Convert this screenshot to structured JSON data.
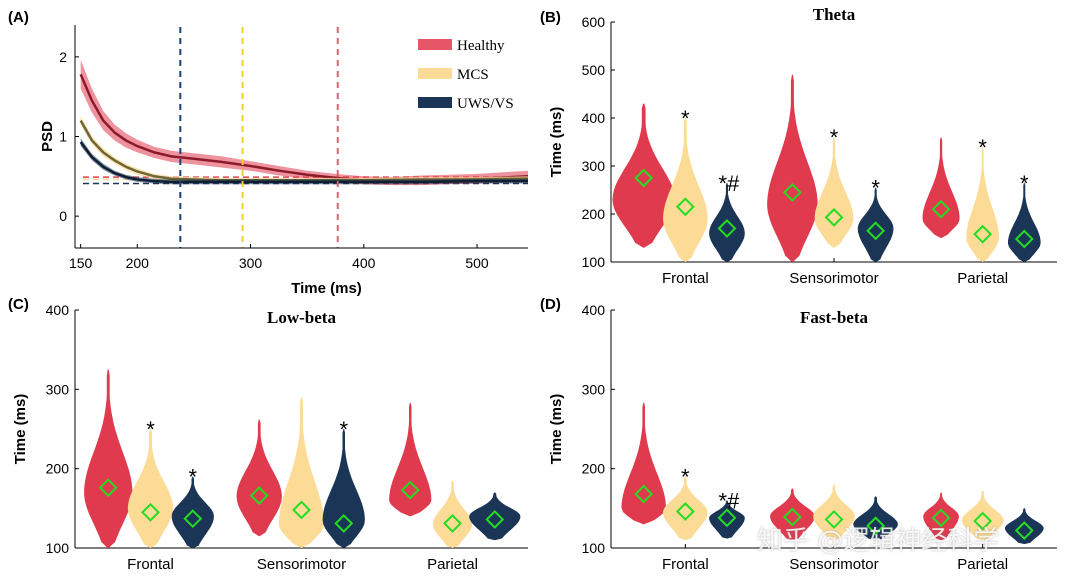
{
  "colors": {
    "healthy": "#E03A4E",
    "mcs": "#FBDB95",
    "uws": "#1B3556",
    "healthy_line": "#8B1A2A",
    "mcs_line": "#6E6638",
    "uws_line": "#0F1E33",
    "marker": "#22DD22",
    "vline_uws": "#1F3F7A",
    "vline_mcs": "#F2D226",
    "vline_healthy": "#E06070"
  },
  "watermark": "知乎 @逻辑神经科学",
  "chart_data": [
    {
      "id": "A",
      "panel_label": "(A)",
      "type": "line",
      "title": "",
      "xlabel": "Time (ms)",
      "ylabel": "PSD",
      "xlim": [
        145,
        545
      ],
      "ylim": [
        -0.4,
        2.4
      ],
      "xticks": [
        150,
        200,
        300,
        400,
        500
      ],
      "yticks": [
        0,
        1,
        2
      ],
      "legend": {
        "position": "top-right",
        "entries": [
          "Healthy",
          "MCS",
          "UWS/VS"
        ]
      },
      "series": [
        {
          "name": "Healthy",
          "key": "healthy",
          "x": [
            150,
            160,
            170,
            180,
            190,
            200,
            215,
            230,
            250,
            275,
            300,
            325,
            350,
            375,
            400,
            425,
            450,
            475,
            500,
            545
          ],
          "y": [
            1.78,
            1.45,
            1.2,
            1.05,
            0.95,
            0.88,
            0.8,
            0.75,
            0.72,
            0.68,
            0.63,
            0.57,
            0.52,
            0.48,
            0.45,
            0.44,
            0.45,
            0.46,
            0.47,
            0.5
          ],
          "band": [
            0.18,
            0.15,
            0.12,
            0.1,
            0.09,
            0.08,
            0.07,
            0.07,
            0.07,
            0.07,
            0.06,
            0.06,
            0.05,
            0.05,
            0.05,
            0.05,
            0.06,
            0.06,
            0.06,
            0.07
          ]
        },
        {
          "name": "MCS",
          "key": "mcs",
          "x": [
            150,
            160,
            170,
            180,
            190,
            200,
            215,
            230,
            250,
            275,
            300,
            350,
            400,
            450,
            500,
            545
          ],
          "y": [
            1.2,
            0.95,
            0.8,
            0.7,
            0.62,
            0.56,
            0.5,
            0.47,
            0.46,
            0.45,
            0.45,
            0.45,
            0.45,
            0.46,
            0.46,
            0.47
          ],
          "band": [
            0.06,
            0.05,
            0.05,
            0.04,
            0.04,
            0.04,
            0.03,
            0.03,
            0.03,
            0.03,
            0.03,
            0.03,
            0.03,
            0.03,
            0.03,
            0.03
          ]
        },
        {
          "name": "UWS/VS",
          "key": "uws",
          "x": [
            150,
            160,
            170,
            180,
            190,
            200,
            215,
            230,
            250,
            275,
            300,
            350,
            400,
            450,
            500,
            545
          ],
          "y": [
            0.93,
            0.74,
            0.62,
            0.54,
            0.49,
            0.46,
            0.44,
            0.43,
            0.43,
            0.43,
            0.43,
            0.43,
            0.43,
            0.43,
            0.44,
            0.44
          ],
          "band": [
            0.05,
            0.04,
            0.04,
            0.03,
            0.03,
            0.03,
            0.03,
            0.03,
            0.03,
            0.03,
            0.03,
            0.03,
            0.03,
            0.03,
            0.03,
            0.03
          ]
        }
      ],
      "vlines": [
        {
          "x": 238,
          "key": "vline_uws"
        },
        {
          "x": 293,
          "key": "vline_mcs"
        },
        {
          "x": 377,
          "key": "vline_healthy"
        }
      ],
      "hlines": [
        {
          "y": 0.49,
          "key": "healthy"
        },
        {
          "y": 0.46,
          "key": "mcs"
        },
        {
          "y": 0.41,
          "key": "uws"
        }
      ]
    },
    {
      "id": "B",
      "panel_label": "(B)",
      "type": "violin",
      "title": "Theta",
      "ylabel": "Time (ms)",
      "ylim": [
        100,
        600
      ],
      "yticks": [
        100,
        200,
        300,
        400,
        500,
        600
      ],
      "categories": [
        "Frontal",
        "Sensorimotor",
        "Parietal"
      ],
      "groups": [
        [
          {
            "group": "Healthy",
            "range": [
              130,
              430
            ],
            "mean": 275,
            "mode": 230,
            "width": 0.42,
            "sig": ""
          },
          {
            "group": "MCS",
            "range": [
              100,
              400
            ],
            "mean": 215,
            "mode": 190,
            "width": 0.3,
            "sig": "*"
          },
          {
            "group": "UWS/VS",
            "range": [
              100,
              265
            ],
            "mean": 170,
            "mode": 160,
            "width": 0.24,
            "sig": "*#"
          }
        ],
        [
          {
            "group": "Healthy",
            "range": [
              100,
              490
            ],
            "mean": 245,
            "mode": 220,
            "width": 0.34,
            "sig": ""
          },
          {
            "group": "MCS",
            "range": [
              130,
              360
            ],
            "mean": 193,
            "mode": 190,
            "width": 0.26,
            "sig": "*"
          },
          {
            "group": "UWS/VS",
            "range": [
              100,
              255
            ],
            "mean": 165,
            "mode": 170,
            "width": 0.24,
            "sig": "*"
          }
        ],
        [
          {
            "group": "Healthy",
            "range": [
              150,
              360
            ],
            "mean": 210,
            "mode": 190,
            "width": 0.25,
            "sig": ""
          },
          {
            "group": "MCS",
            "range": [
              100,
              340
            ],
            "mean": 158,
            "mode": 150,
            "width": 0.22,
            "sig": "*"
          },
          {
            "group": "UWS/VS",
            "range": [
              100,
              265
            ],
            "mean": 148,
            "mode": 140,
            "width": 0.22,
            "sig": "*"
          }
        ]
      ]
    },
    {
      "id": "C",
      "panel_label": "(C)",
      "type": "violin",
      "title": "Low-beta",
      "ylabel": "Time (ms)",
      "ylim": [
        100,
        400
      ],
      "yticks": [
        100,
        200,
        300,
        400
      ],
      "categories": [
        "Frontal",
        "Sensorimotor",
        "Parietal"
      ],
      "groups": [
        [
          {
            "group": "Healthy",
            "range": [
              100,
              325
            ],
            "mean": 176,
            "mode": 170,
            "width": 0.32,
            "sig": ""
          },
          {
            "group": "MCS",
            "range": [
              100,
              250
            ],
            "mean": 145,
            "mode": 150,
            "width": 0.3,
            "sig": "*"
          },
          {
            "group": "UWS/VS",
            "range": [
              100,
              190
            ],
            "mean": 137,
            "mode": 140,
            "width": 0.28,
            "sig": "*"
          }
        ],
        [
          {
            "group": "Healthy",
            "range": [
              115,
              262
            ],
            "mean": 166,
            "mode": 165,
            "width": 0.3,
            "sig": ""
          },
          {
            "group": "MCS",
            "range": [
              100,
              290
            ],
            "mean": 148,
            "mode": 130,
            "width": 0.3,
            "sig": ""
          },
          {
            "group": "UWS/VS",
            "range": [
              100,
              250
            ],
            "mean": 131,
            "mode": 135,
            "width": 0.28,
            "sig": "*"
          }
        ],
        [
          {
            "group": "Healthy",
            "range": [
              140,
              283
            ],
            "mean": 173,
            "mode": 160,
            "width": 0.28,
            "sig": ""
          },
          {
            "group": "MCS",
            "range": [
              100,
              185
            ],
            "mean": 131,
            "mode": 130,
            "width": 0.26,
            "sig": ""
          },
          {
            "group": "UWS/VS",
            "range": [
              110,
              170
            ],
            "mean": 136,
            "mode": 140,
            "width": 0.34,
            "sig": ""
          }
        ]
      ]
    },
    {
      "id": "D",
      "panel_label": "(D)",
      "type": "violin",
      "title": "Fast-beta",
      "ylabel": "Time (ms)",
      "ylim": [
        100,
        400
      ],
      "yticks": [
        100,
        200,
        300,
        400
      ],
      "categories": [
        "Frontal",
        "Sensorimotor",
        "Parietal"
      ],
      "groups": [
        [
          {
            "group": "Healthy",
            "range": [
              130,
              283
            ],
            "mean": 168,
            "mode": 150,
            "width": 0.3,
            "sig": ""
          },
          {
            "group": "MCS",
            "range": [
              110,
              190
            ],
            "mean": 146,
            "mode": 145,
            "width": 0.3,
            "sig": "*"
          },
          {
            "group": "UWS/VS",
            "range": [
              112,
              160
            ],
            "mean": 138,
            "mode": 138,
            "width": 0.24,
            "sig": "*#"
          }
        ],
        [
          {
            "group": "Healthy",
            "range": [
              110,
              175
            ],
            "mean": 139,
            "mode": 140,
            "width": 0.3,
            "sig": ""
          },
          {
            "group": "MCS",
            "range": [
              110,
              180
            ],
            "mean": 136,
            "mode": 140,
            "width": 0.28,
            "sig": ""
          },
          {
            "group": "UWS/VS",
            "range": [
              110,
              165
            ],
            "mean": 128,
            "mode": 130,
            "width": 0.3,
            "sig": ""
          }
        ],
        [
          {
            "group": "Healthy",
            "range": [
              110,
              170
            ],
            "mean": 138,
            "mode": 140,
            "width": 0.24,
            "sig": ""
          },
          {
            "group": "MCS",
            "range": [
              110,
              172
            ],
            "mean": 134,
            "mode": 135,
            "width": 0.28,
            "sig": ""
          },
          {
            "group": "UWS/VS",
            "range": [
              105,
              150
            ],
            "mean": 122,
            "mode": 125,
            "width": 0.26,
            "sig": ""
          }
        ]
      ]
    }
  ]
}
